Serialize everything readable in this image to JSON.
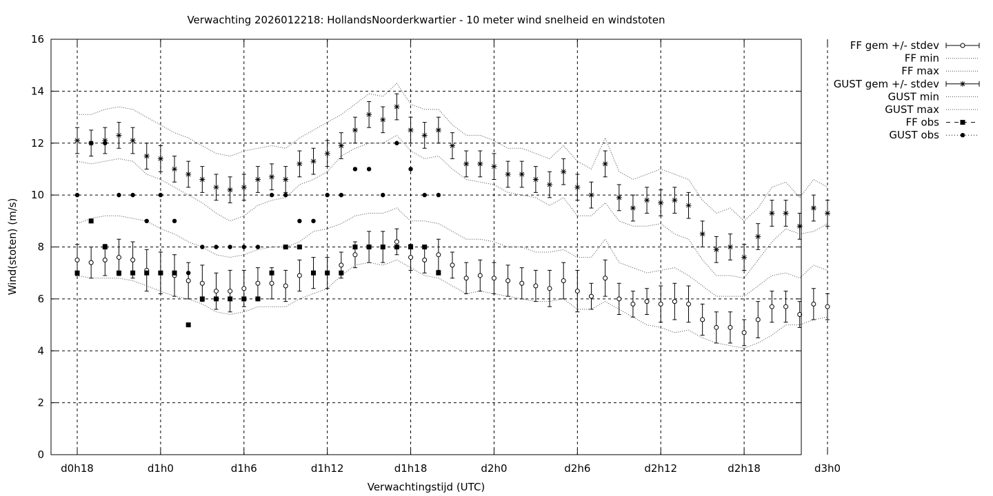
{
  "chart_data": {
    "type": "line",
    "title": "Verwachting 2026012218: HollandsNoorderkwartier - 10 meter wind snelheid en windstoten",
    "xlabel": "Verwachtingstijd (UTC)",
    "ylabel": "Wind(stoten) (m/s)",
    "ylim": [
      0,
      16
    ],
    "yticks": [
      "0",
      "2",
      "4",
      "6",
      "8",
      "10",
      "12",
      "14",
      "16"
    ],
    "xlim": [
      18,
      72
    ],
    "xticks": [
      {
        "x": 18,
        "label": "d0h18"
      },
      {
        "x": 24,
        "label": "d1h0"
      },
      {
        "x": 30,
        "label": "d1h6"
      },
      {
        "x": 36,
        "label": "d1h12"
      },
      {
        "x": 42,
        "label": "d1h18"
      },
      {
        "x": 48,
        "label": "d2h0"
      },
      {
        "x": 54,
        "label": "d2h6"
      },
      {
        "x": 60,
        "label": "d2h12"
      },
      {
        "x": 66,
        "label": "d2h18"
      },
      {
        "x": 72,
        "label": "d3h0"
      }
    ],
    "grid": true,
    "legend_position": "outside-right",
    "x": [
      18,
      19,
      20,
      21,
      22,
      23,
      24,
      25,
      26,
      27,
      28,
      29,
      30,
      31,
      32,
      33,
      34,
      35,
      36,
      37,
      38,
      39,
      40,
      41,
      42,
      43,
      44,
      45,
      46,
      47,
      48,
      49,
      50,
      51,
      52,
      53,
      54,
      55,
      56,
      57,
      58,
      59,
      60,
      61,
      62,
      63,
      64,
      65,
      66,
      67,
      68,
      69,
      70,
      71,
      72
    ],
    "series": [
      {
        "name": "FF gem +/- stdev",
        "style": "errorbar-circle",
        "values": [
          7.5,
          7.4,
          7.5,
          7.6,
          7.5,
          7.1,
          7.0,
          6.9,
          6.7,
          6.6,
          6.3,
          6.3,
          6.4,
          6.6,
          6.6,
          6.5,
          6.9,
          7.0,
          7.0,
          7.3,
          7.7,
          8.0,
          8.0,
          8.2,
          7.6,
          7.5,
          7.7,
          7.3,
          6.8,
          6.9,
          6.8,
          6.7,
          6.6,
          6.5,
          6.4,
          6.7,
          6.3,
          6.1,
          6.8,
          6.0,
          5.8,
          5.9,
          5.8,
          5.9,
          5.8,
          5.2,
          4.9,
          4.9,
          4.7,
          5.2,
          5.7,
          5.7,
          5.4,
          5.8,
          5.7
        ],
        "stdev": [
          0.6,
          0.6,
          0.6,
          0.7,
          0.7,
          0.8,
          0.8,
          0.8,
          0.7,
          0.7,
          0.7,
          0.8,
          0.7,
          0.6,
          0.6,
          0.6,
          0.6,
          0.6,
          0.6,
          0.5,
          0.5,
          0.6,
          0.6,
          0.5,
          0.5,
          0.5,
          0.6,
          0.5,
          0.6,
          0.6,
          0.6,
          0.6,
          0.6,
          0.6,
          0.7,
          0.7,
          0.8,
          0.5,
          0.7,
          0.6,
          0.5,
          0.5,
          0.7,
          0.7,
          0.7,
          0.6,
          0.6,
          0.6,
          0.5,
          0.7,
          0.6,
          0.6,
          0.5,
          0.6,
          0.5
        ]
      },
      {
        "name": "FF min",
        "style": "dotted",
        "values": [
          6.9,
          6.8,
          6.8,
          6.8,
          6.7,
          6.5,
          6.3,
          6.1,
          6.0,
          5.8,
          5.5,
          5.4,
          5.5,
          5.7,
          5.7,
          5.7,
          6.0,
          6.2,
          6.4,
          6.9,
          7.3,
          7.4,
          7.3,
          7.5,
          7.2,
          6.9,
          6.8,
          6.5,
          6.2,
          6.3,
          6.2,
          6.1,
          6.0,
          5.9,
          5.9,
          6.0,
          5.6,
          5.6,
          5.9,
          5.6,
          5.3,
          5.0,
          4.9,
          4.7,
          4.8,
          4.5,
          4.3,
          4.2,
          4.1,
          4.3,
          4.6,
          5.0,
          5.0,
          5.2,
          5.3
        ]
      },
      {
        "name": "FF max",
        "style": "dotted",
        "values": [
          8.9,
          9.1,
          9.2,
          9.2,
          9.1,
          9.0,
          8.7,
          8.5,
          8.2,
          8.0,
          7.7,
          7.6,
          7.7,
          7.9,
          8.0,
          8.0,
          8.2,
          8.6,
          8.7,
          8.9,
          9.2,
          9.3,
          9.3,
          9.5,
          9.0,
          9.0,
          8.9,
          8.6,
          8.3,
          8.3,
          8.2,
          8.0,
          8.0,
          7.8,
          7.8,
          7.9,
          7.6,
          7.6,
          8.3,
          7.4,
          7.2,
          7.0,
          7.1,
          7.2,
          6.9,
          6.5,
          6.1,
          6.1,
          6.1,
          6.5,
          6.9,
          7.0,
          6.8,
          7.3,
          7.1
        ]
      },
      {
        "name": "GUST gem +/- stdev",
        "style": "errorbar-star",
        "values": [
          12.1,
          12.0,
          12.1,
          12.3,
          12.1,
          11.5,
          11.4,
          11.0,
          10.8,
          10.6,
          10.3,
          10.2,
          10.3,
          10.6,
          10.7,
          10.6,
          11.2,
          11.3,
          11.6,
          11.9,
          12.5,
          13.1,
          12.9,
          13.4,
          12.5,
          12.3,
          12.5,
          11.9,
          11.2,
          11.2,
          11.1,
          10.8,
          10.8,
          10.6,
          10.4,
          10.9,
          10.3,
          10.0,
          11.2,
          9.9,
          9.5,
          9.8,
          9.7,
          9.8,
          9.6,
          8.5,
          7.9,
          8.0,
          7.6,
          8.4,
          9.3,
          9.3,
          8.8,
          9.5,
          9.3
        ]
      },
      {
        "name": "GUST min",
        "style": "dotted",
        "values": [
          11.3,
          11.2,
          11.3,
          11.4,
          11.3,
          10.8,
          10.6,
          10.3,
          10.0,
          9.7,
          9.3,
          9.0,
          9.2,
          9.6,
          9.8,
          9.9,
          10.4,
          10.6,
          10.9,
          11.5,
          11.8,
          12.0,
          12.0,
          12.3,
          11.7,
          11.4,
          11.5,
          11.0,
          10.6,
          10.5,
          10.4,
          10.1,
          10.0,
          9.9,
          9.6,
          9.9,
          9.2,
          9.2,
          9.7,
          9.0,
          8.8,
          8.8,
          8.9,
          8.5,
          8.3,
          7.5,
          6.9,
          6.9,
          6.8,
          7.5,
          8.2,
          8.7,
          8.5,
          8.6,
          8.9
        ]
      },
      {
        "name": "GUST max",
        "style": "dotted",
        "values": [
          13.1,
          13.1,
          13.3,
          13.4,
          13.3,
          13.0,
          12.7,
          12.4,
          12.2,
          11.9,
          11.6,
          11.5,
          11.7,
          11.8,
          11.9,
          11.8,
          12.2,
          12.5,
          12.8,
          13.1,
          13.5,
          13.9,
          13.8,
          14.3,
          13.5,
          13.3,
          13.3,
          12.7,
          12.3,
          12.3,
          12.1,
          11.8,
          11.8,
          11.6,
          11.4,
          11.9,
          11.3,
          11.0,
          12.2,
          10.9,
          10.6,
          10.8,
          11.0,
          10.8,
          10.6,
          9.8,
          9.3,
          9.5,
          9.0,
          9.5,
          10.3,
          10.5,
          9.9,
          10.6,
          10.3
        ]
      },
      {
        "name": "FF obs",
        "style": "square",
        "x": [
          18,
          19,
          20,
          21,
          22,
          23,
          24,
          25,
          26,
          27,
          28,
          29,
          30,
          31,
          32,
          33,
          34,
          35,
          36,
          37,
          38,
          39,
          40,
          41,
          42,
          43,
          44
        ],
        "values": [
          7,
          9,
          8,
          7,
          7,
          7,
          7,
          7,
          5,
          6,
          6,
          6,
          6,
          6,
          7,
          8,
          8,
          7,
          7,
          7,
          8,
          8,
          8,
          8,
          8,
          8,
          7
        ]
      },
      {
        "name": "GUST obs",
        "style": "dot",
        "x": [
          18,
          19,
          20,
          21,
          22,
          23,
          24,
          25,
          26,
          27,
          28,
          29,
          30,
          31,
          32,
          33,
          34,
          35,
          36,
          37,
          38,
          39,
          40,
          41,
          42,
          43,
          44
        ],
        "values": [
          10,
          12,
          12,
          10,
          10,
          9,
          10,
          9,
          7,
          8,
          8,
          8,
          8,
          8,
          10,
          10,
          9,
          9,
          10,
          10,
          11,
          11,
          10,
          12,
          11,
          10,
          10
        ]
      }
    ]
  }
}
